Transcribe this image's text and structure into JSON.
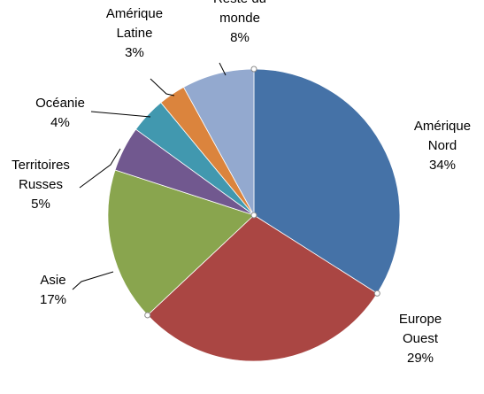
{
  "chart_data": {
    "type": "pie",
    "title": "",
    "start": "12 o'clock, clockwise",
    "labels_position": "outside with leader lines",
    "slices": [
      {
        "label_lines": [
          "Amérique",
          "Nord"
        ],
        "percent_label": "34%",
        "value": 34,
        "color": "#4572A7"
      },
      {
        "label_lines": [
          "Europe",
          "Ouest"
        ],
        "percent_label": "29%",
        "value": 29,
        "color": "#AA4643"
      },
      {
        "label_lines": [
          "Asie"
        ],
        "percent_label": "17%",
        "value": 17,
        "color": "#89A54E"
      },
      {
        "label_lines": [
          "Territoires",
          "Russes"
        ],
        "percent_label": "5%",
        "value": 5,
        "color": "#71588F"
      },
      {
        "label_lines": [
          "Océanie"
        ],
        "percent_label": "4%",
        "value": 4,
        "color": "#4198AF"
      },
      {
        "label_lines": [
          "Amérique",
          "Latine"
        ],
        "percent_label": "3%",
        "value": 3,
        "color": "#DB843D"
      },
      {
        "label_lines": [
          "Reste du",
          "monde"
        ],
        "percent_label": "8%",
        "value": 8,
        "color": "#93A9CF"
      }
    ]
  }
}
